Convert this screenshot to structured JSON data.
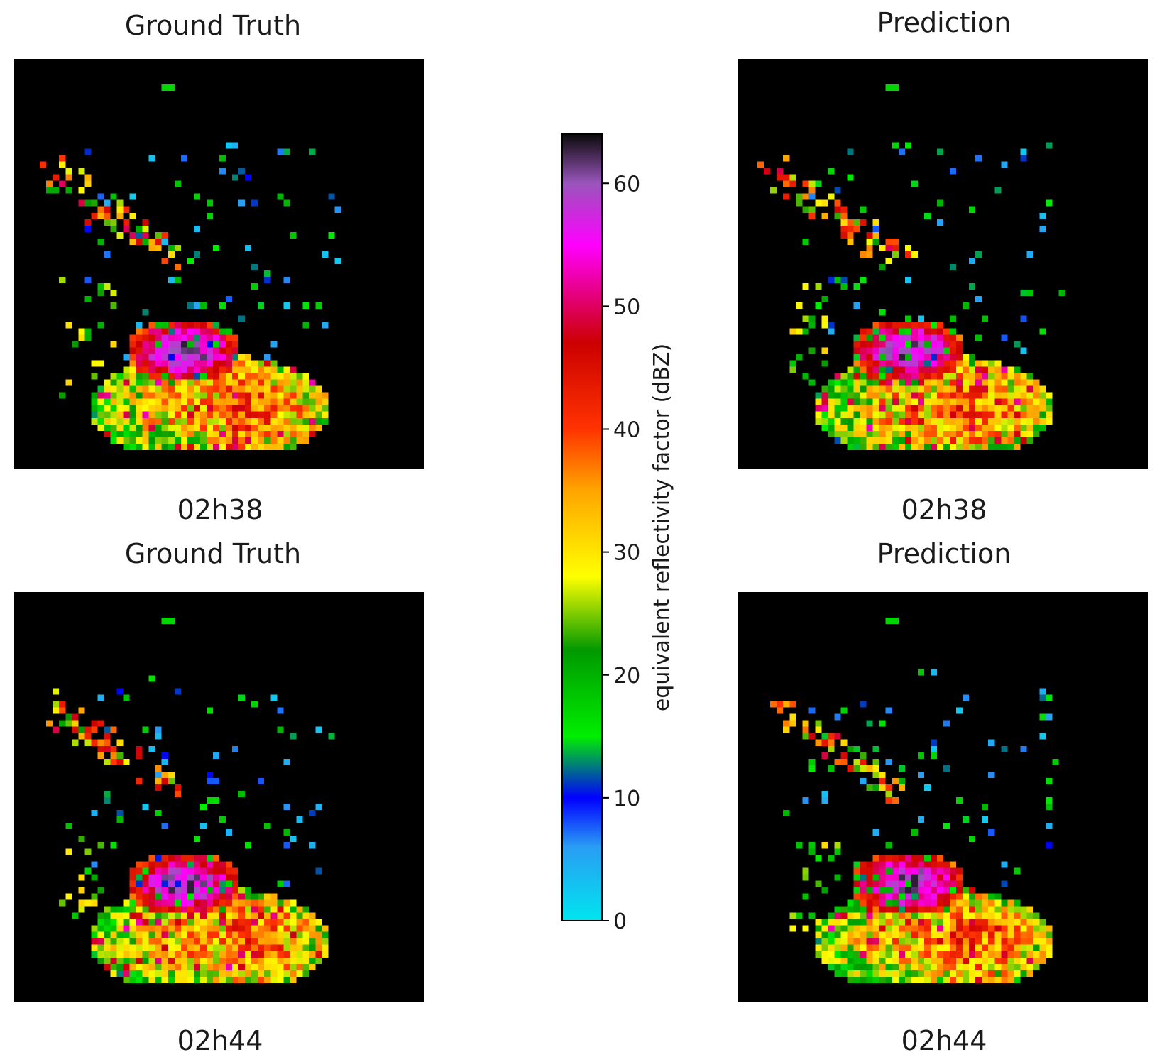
{
  "panels": [
    {
      "title": "Ground Truth",
      "time": "02h38",
      "kind": "gt",
      "seed": 11
    },
    {
      "title": "Prediction",
      "time": "02h38",
      "kind": "pred",
      "seed": 23
    },
    {
      "title": "Ground Truth",
      "time": "02h44",
      "kind": "gt",
      "seed": 37
    },
    {
      "title": "Prediction",
      "time": "02h44",
      "kind": "pred",
      "seed": 51
    }
  ],
  "chart_data": {
    "type": "heatmap",
    "colorbar": {
      "label": "equivalent reflectivity factor (dBZ)",
      "ticks": [
        0,
        10,
        20,
        30,
        40,
        50,
        60
      ],
      "range": [
        0,
        64
      ],
      "colors": [
        {
          "v": 0,
          "c": "#00e5ee"
        },
        {
          "v": 6,
          "c": "#2a9df4"
        },
        {
          "v": 10,
          "c": "#0000ff"
        },
        {
          "v": 15,
          "c": "#00ee00"
        },
        {
          "v": 22,
          "c": "#009900"
        },
        {
          "v": 28,
          "c": "#ffff00"
        },
        {
          "v": 35,
          "c": "#ffa500"
        },
        {
          "v": 40,
          "c": "#ff3300"
        },
        {
          "v": 47,
          "c": "#cc0000"
        },
        {
          "v": 55,
          "c": "#ff00ff"
        },
        {
          "v": 60,
          "c": "#9955bb"
        },
        {
          "v": 64,
          "c": "#0a0a0a"
        }
      ]
    }
  }
}
